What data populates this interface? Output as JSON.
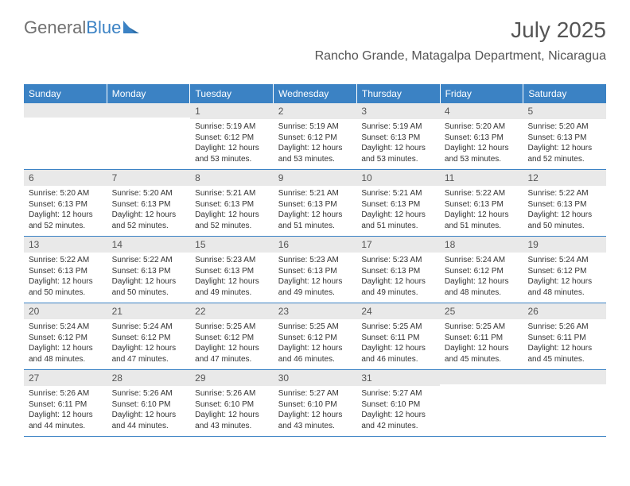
{
  "logo": {
    "part1": "General",
    "part2": "Blue"
  },
  "title": "July 2025",
  "subtitle": "Rancho Grande, Matagalpa Department, Nicaragua",
  "colors": {
    "header_bar": "#3b82c4",
    "header_text": "#ffffff",
    "daynum_bg": "#e9e9e9",
    "text": "#333333",
    "logo_gray": "#707070",
    "logo_blue": "#3b82c4"
  },
  "day_headers": [
    "Sunday",
    "Monday",
    "Tuesday",
    "Wednesday",
    "Thursday",
    "Friday",
    "Saturday"
  ],
  "weeks": [
    [
      {
        "day": "",
        "sunrise": "",
        "sunset": "",
        "daylight": ""
      },
      {
        "day": "",
        "sunrise": "",
        "sunset": "",
        "daylight": ""
      },
      {
        "day": "1",
        "sunrise": "Sunrise: 5:19 AM",
        "sunset": "Sunset: 6:12 PM",
        "daylight": "Daylight: 12 hours and 53 minutes."
      },
      {
        "day": "2",
        "sunrise": "Sunrise: 5:19 AM",
        "sunset": "Sunset: 6:12 PM",
        "daylight": "Daylight: 12 hours and 53 minutes."
      },
      {
        "day": "3",
        "sunrise": "Sunrise: 5:19 AM",
        "sunset": "Sunset: 6:13 PM",
        "daylight": "Daylight: 12 hours and 53 minutes."
      },
      {
        "day": "4",
        "sunrise": "Sunrise: 5:20 AM",
        "sunset": "Sunset: 6:13 PM",
        "daylight": "Daylight: 12 hours and 53 minutes."
      },
      {
        "day": "5",
        "sunrise": "Sunrise: 5:20 AM",
        "sunset": "Sunset: 6:13 PM",
        "daylight": "Daylight: 12 hours and 52 minutes."
      }
    ],
    [
      {
        "day": "6",
        "sunrise": "Sunrise: 5:20 AM",
        "sunset": "Sunset: 6:13 PM",
        "daylight": "Daylight: 12 hours and 52 minutes."
      },
      {
        "day": "7",
        "sunrise": "Sunrise: 5:20 AM",
        "sunset": "Sunset: 6:13 PM",
        "daylight": "Daylight: 12 hours and 52 minutes."
      },
      {
        "day": "8",
        "sunrise": "Sunrise: 5:21 AM",
        "sunset": "Sunset: 6:13 PM",
        "daylight": "Daylight: 12 hours and 52 minutes."
      },
      {
        "day": "9",
        "sunrise": "Sunrise: 5:21 AM",
        "sunset": "Sunset: 6:13 PM",
        "daylight": "Daylight: 12 hours and 51 minutes."
      },
      {
        "day": "10",
        "sunrise": "Sunrise: 5:21 AM",
        "sunset": "Sunset: 6:13 PM",
        "daylight": "Daylight: 12 hours and 51 minutes."
      },
      {
        "day": "11",
        "sunrise": "Sunrise: 5:22 AM",
        "sunset": "Sunset: 6:13 PM",
        "daylight": "Daylight: 12 hours and 51 minutes."
      },
      {
        "day": "12",
        "sunrise": "Sunrise: 5:22 AM",
        "sunset": "Sunset: 6:13 PM",
        "daylight": "Daylight: 12 hours and 50 minutes."
      }
    ],
    [
      {
        "day": "13",
        "sunrise": "Sunrise: 5:22 AM",
        "sunset": "Sunset: 6:13 PM",
        "daylight": "Daylight: 12 hours and 50 minutes."
      },
      {
        "day": "14",
        "sunrise": "Sunrise: 5:22 AM",
        "sunset": "Sunset: 6:13 PM",
        "daylight": "Daylight: 12 hours and 50 minutes."
      },
      {
        "day": "15",
        "sunrise": "Sunrise: 5:23 AM",
        "sunset": "Sunset: 6:13 PM",
        "daylight": "Daylight: 12 hours and 49 minutes."
      },
      {
        "day": "16",
        "sunrise": "Sunrise: 5:23 AM",
        "sunset": "Sunset: 6:13 PM",
        "daylight": "Daylight: 12 hours and 49 minutes."
      },
      {
        "day": "17",
        "sunrise": "Sunrise: 5:23 AM",
        "sunset": "Sunset: 6:13 PM",
        "daylight": "Daylight: 12 hours and 49 minutes."
      },
      {
        "day": "18",
        "sunrise": "Sunrise: 5:24 AM",
        "sunset": "Sunset: 6:12 PM",
        "daylight": "Daylight: 12 hours and 48 minutes."
      },
      {
        "day": "19",
        "sunrise": "Sunrise: 5:24 AM",
        "sunset": "Sunset: 6:12 PM",
        "daylight": "Daylight: 12 hours and 48 minutes."
      }
    ],
    [
      {
        "day": "20",
        "sunrise": "Sunrise: 5:24 AM",
        "sunset": "Sunset: 6:12 PM",
        "daylight": "Daylight: 12 hours and 48 minutes."
      },
      {
        "day": "21",
        "sunrise": "Sunrise: 5:24 AM",
        "sunset": "Sunset: 6:12 PM",
        "daylight": "Daylight: 12 hours and 47 minutes."
      },
      {
        "day": "22",
        "sunrise": "Sunrise: 5:25 AM",
        "sunset": "Sunset: 6:12 PM",
        "daylight": "Daylight: 12 hours and 47 minutes."
      },
      {
        "day": "23",
        "sunrise": "Sunrise: 5:25 AM",
        "sunset": "Sunset: 6:12 PM",
        "daylight": "Daylight: 12 hours and 46 minutes."
      },
      {
        "day": "24",
        "sunrise": "Sunrise: 5:25 AM",
        "sunset": "Sunset: 6:11 PM",
        "daylight": "Daylight: 12 hours and 46 minutes."
      },
      {
        "day": "25",
        "sunrise": "Sunrise: 5:25 AM",
        "sunset": "Sunset: 6:11 PM",
        "daylight": "Daylight: 12 hours and 45 minutes."
      },
      {
        "day": "26",
        "sunrise": "Sunrise: 5:26 AM",
        "sunset": "Sunset: 6:11 PM",
        "daylight": "Daylight: 12 hours and 45 minutes."
      }
    ],
    [
      {
        "day": "27",
        "sunrise": "Sunrise: 5:26 AM",
        "sunset": "Sunset: 6:11 PM",
        "daylight": "Daylight: 12 hours and 44 minutes."
      },
      {
        "day": "28",
        "sunrise": "Sunrise: 5:26 AM",
        "sunset": "Sunset: 6:10 PM",
        "daylight": "Daylight: 12 hours and 44 minutes."
      },
      {
        "day": "29",
        "sunrise": "Sunrise: 5:26 AM",
        "sunset": "Sunset: 6:10 PM",
        "daylight": "Daylight: 12 hours and 43 minutes."
      },
      {
        "day": "30",
        "sunrise": "Sunrise: 5:27 AM",
        "sunset": "Sunset: 6:10 PM",
        "daylight": "Daylight: 12 hours and 43 minutes."
      },
      {
        "day": "31",
        "sunrise": "Sunrise: 5:27 AM",
        "sunset": "Sunset: 6:10 PM",
        "daylight": "Daylight: 12 hours and 42 minutes."
      },
      {
        "day": "",
        "sunrise": "",
        "sunset": "",
        "daylight": ""
      },
      {
        "day": "",
        "sunrise": "",
        "sunset": "",
        "daylight": ""
      }
    ]
  ]
}
